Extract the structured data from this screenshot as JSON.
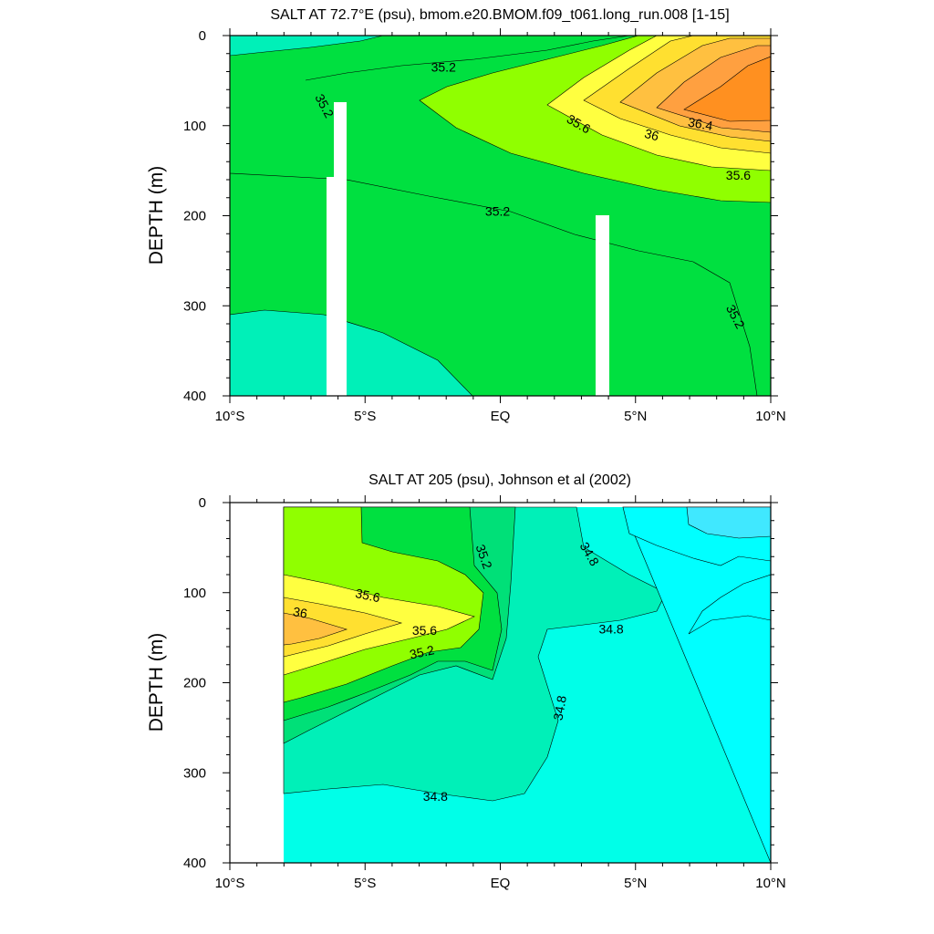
{
  "chart_data": [
    {
      "type": "heatmap",
      "title": "SALT AT  72.7°E (psu), bmom.e20.BMOM.f09_t061.long_run.008 [1-15]",
      "xlabel": "",
      "ylabel": "DEPTH (m)",
      "x_ticks": [
        "10°S",
        "5°S",
        "EQ",
        "5°N",
        "10°N"
      ],
      "y_ticks": [
        "0",
        "100",
        "200",
        "300",
        "400"
      ],
      "xlim": [
        -10,
        10
      ],
      "ylim": [
        400,
        0
      ],
      "contour_labels": [
        {
          "text": "35.2",
          "lat": -2.1,
          "depth": 35,
          "angle": 0
        },
        {
          "text": "35.2",
          "lat": -6.5,
          "depth": 78,
          "angle": 62
        },
        {
          "text": "35.6",
          "lat": 2.9,
          "depth": 98,
          "angle": 30
        },
        {
          "text": "36",
          "lat": 5.6,
          "depth": 110,
          "angle": 15
        },
        {
          "text": "36.4",
          "lat": 7.4,
          "depth": 98,
          "angle": 10
        },
        {
          "text": "35.6",
          "lat": 8.8,
          "depth": 155,
          "angle": 0
        },
        {
          "text": "35.2",
          "lat": -0.1,
          "depth": 195,
          "angle": 0
        },
        {
          "text": "35.2",
          "lat": 8.7,
          "depth": 312,
          "angle": 62
        }
      ],
      "colors": {
        "lt34_8": "#00ffe0",
        "34_8_35_0": "#00f0b8",
        "35_2_35_4": "#00e040",
        "35_4_35_6": "#90ff00",
        "35_6_35_8": "#ffff40",
        "35_8_36_0": "#ffe030",
        "36_0_36_2": "#ffc040",
        "36_2_36_4": "#ffa040",
        "gt36_4": "#ff9020"
      }
    },
    {
      "type": "heatmap",
      "title": "SALT AT 205 (psu), Johnson et al (2002)",
      "xlabel": "",
      "ylabel": "DEPTH (m)",
      "x_ticks": [
        "10°S",
        "5°S",
        "EQ",
        "5°N",
        "10°N"
      ],
      "y_ticks": [
        "0",
        "100",
        "200",
        "300",
        "400"
      ],
      "xlim": [
        -10,
        10
      ],
      "ylim": [
        400,
        0
      ],
      "contour_labels": [
        {
          "text": "35.2",
          "lat": -0.6,
          "depth": 60,
          "angle": 70
        },
        {
          "text": "34.8",
          "lat": 3.3,
          "depth": 57,
          "angle": 60
        },
        {
          "text": "35.6",
          "lat": -4.9,
          "depth": 103,
          "angle": 12
        },
        {
          "text": "36",
          "lat": -7.4,
          "depth": 122,
          "angle": 10
        },
        {
          "text": "35.6",
          "lat": -2.8,
          "depth": 142,
          "angle": 0
        },
        {
          "text": "34.8",
          "lat": 4.1,
          "depth": 140,
          "angle": 0
        },
        {
          "text": "35.2",
          "lat": -2.9,
          "depth": 166,
          "angle": -12
        },
        {
          "text": "34.8",
          "lat": 2.2,
          "depth": 228,
          "angle": -80
        },
        {
          "text": "34.8",
          "lat": -2.4,
          "depth": 326,
          "angle": 0
        }
      ],
      "colors": {
        "lt34_6": "#40e8ff",
        "34_6_34_8": "#00ffe8",
        "34_8_35_0": "#00f0b8",
        "35_0_35_2": "#00e078",
        "35_2_35_4": "#00e040",
        "35_4_35_6": "#90ff00",
        "35_6_35_8": "#ffff40",
        "35_8_36_0": "#ffe030",
        "gt36_0": "#ffc040"
      }
    }
  ]
}
